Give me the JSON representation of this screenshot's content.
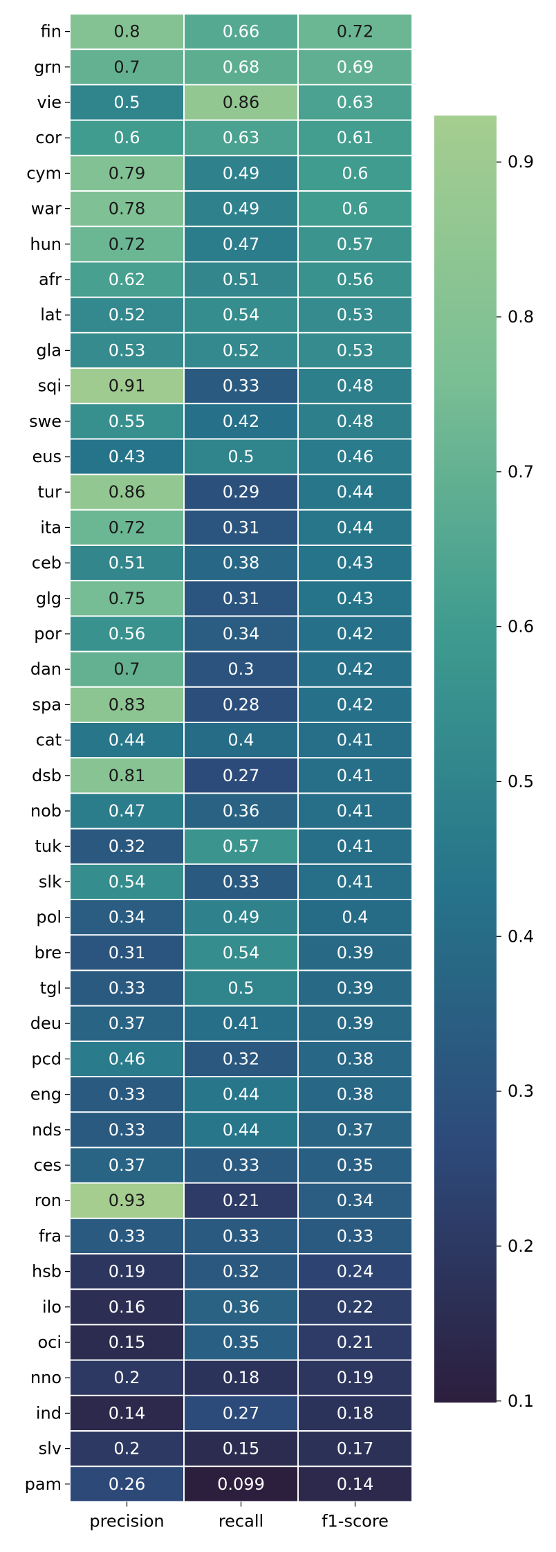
{
  "chart_data": {
    "type": "heatmap",
    "title": "",
    "xlabel": "",
    "ylabel": "",
    "columns": [
      "precision",
      "recall",
      "f1-score"
    ],
    "rows": [
      "fin",
      "grn",
      "vie",
      "cor",
      "cym",
      "war",
      "hun",
      "afr",
      "lat",
      "gla",
      "sqi",
      "swe",
      "eus",
      "tur",
      "ita",
      "ceb",
      "glg",
      "por",
      "dan",
      "spa",
      "cat",
      "dsb",
      "nob",
      "tuk",
      "slk",
      "pol",
      "bre",
      "tgl",
      "deu",
      "pcd",
      "eng",
      "nds",
      "ces",
      "ron",
      "fra",
      "hsb",
      "ilo",
      "oci",
      "nno",
      "ind",
      "slv",
      "pam"
    ],
    "values": [
      [
        0.8,
        0.66,
        0.72
      ],
      [
        0.7,
        0.68,
        0.69
      ],
      [
        0.5,
        0.86,
        0.63
      ],
      [
        0.6,
        0.63,
        0.61
      ],
      [
        0.79,
        0.49,
        0.6
      ],
      [
        0.78,
        0.49,
        0.6
      ],
      [
        0.72,
        0.47,
        0.57
      ],
      [
        0.62,
        0.51,
        0.56
      ],
      [
        0.52,
        0.54,
        0.53
      ],
      [
        0.53,
        0.52,
        0.53
      ],
      [
        0.91,
        0.33,
        0.48
      ],
      [
        0.55,
        0.42,
        0.48
      ],
      [
        0.43,
        0.5,
        0.46
      ],
      [
        0.86,
        0.29,
        0.44
      ],
      [
        0.72,
        0.31,
        0.44
      ],
      [
        0.51,
        0.38,
        0.43
      ],
      [
        0.75,
        0.31,
        0.43
      ],
      [
        0.56,
        0.34,
        0.42
      ],
      [
        0.7,
        0.3,
        0.42
      ],
      [
        0.83,
        0.28,
        0.42
      ],
      [
        0.44,
        0.4,
        0.41
      ],
      [
        0.81,
        0.27,
        0.41
      ],
      [
        0.47,
        0.36,
        0.41
      ],
      [
        0.32,
        0.57,
        0.41
      ],
      [
        0.54,
        0.33,
        0.41
      ],
      [
        0.34,
        0.49,
        0.4
      ],
      [
        0.31,
        0.54,
        0.39
      ],
      [
        0.33,
        0.5,
        0.39
      ],
      [
        0.37,
        0.41,
        0.39
      ],
      [
        0.46,
        0.32,
        0.38
      ],
      [
        0.33,
        0.44,
        0.38
      ],
      [
        0.33,
        0.44,
        0.37
      ],
      [
        0.37,
        0.33,
        0.35
      ],
      [
        0.93,
        0.21,
        0.34
      ],
      [
        0.33,
        0.33,
        0.33
      ],
      [
        0.19,
        0.32,
        0.24
      ],
      [
        0.16,
        0.36,
        0.22
      ],
      [
        0.15,
        0.35,
        0.21
      ],
      [
        0.2,
        0.18,
        0.19
      ],
      [
        0.14,
        0.27,
        0.18
      ],
      [
        0.2,
        0.15,
        0.17
      ],
      [
        0.26,
        0.099,
        0.14
      ]
    ],
    "colormap": "crest",
    "colormap_stops": [
      "#2c1e3d",
      "#2d4a7a",
      "#26748a",
      "#3f9b8f",
      "#7bbf94",
      "#a5cd90"
    ],
    "vmin": 0.099,
    "vmax": 0.93,
    "colorbar": {
      "ticks": [
        0.1,
        0.2,
        0.3,
        0.4,
        0.5,
        0.6,
        0.7,
        0.8,
        0.9
      ],
      "tick_labels": [
        "0.1",
        "0.2",
        "0.3",
        "0.4",
        "0.5",
        "0.6",
        "0.7",
        "0.8",
        "0.9"
      ]
    }
  }
}
